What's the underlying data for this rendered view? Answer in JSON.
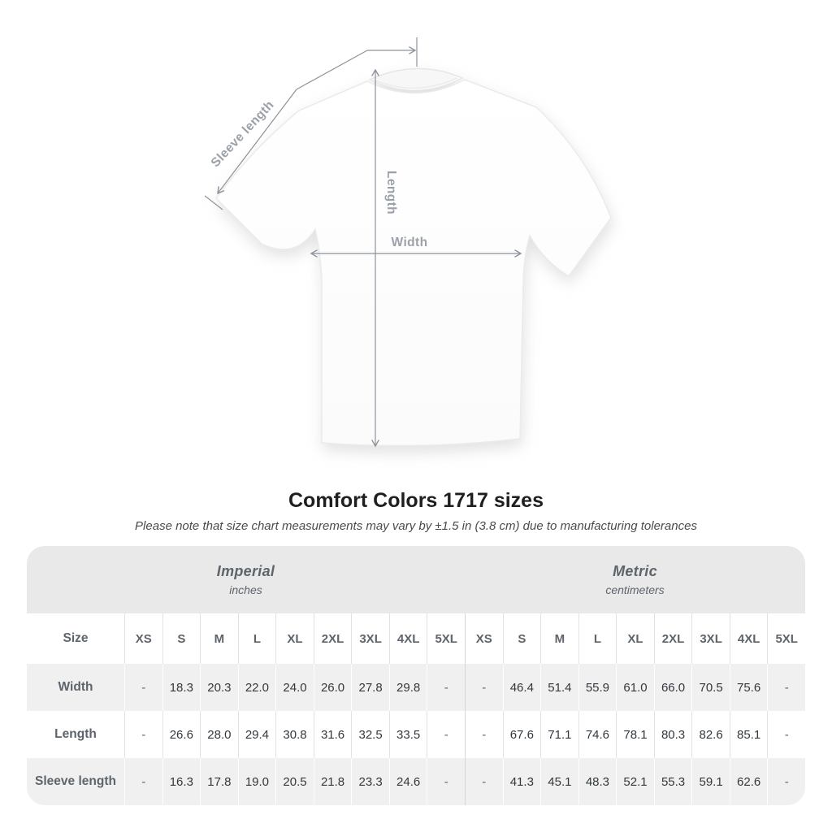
{
  "diagram": {
    "sleeve_length_label": "Sleeve length",
    "length_label": "Length",
    "width_label": "Width"
  },
  "header": {
    "title": "Comfort Colors 1717 sizes",
    "subtitle": "Please note that size chart measurements may vary by ±1.5 in (3.8 cm) due to manufacturing tolerances"
  },
  "table": {
    "size_label": "Size",
    "sections": [
      {
        "name": "Imperial",
        "unit": "inches"
      },
      {
        "name": "Metric",
        "unit": "centimeters"
      }
    ],
    "sizes": [
      "XS",
      "S",
      "M",
      "L",
      "XL",
      "2XL",
      "3XL",
      "4XL",
      "5XL"
    ],
    "rows": [
      {
        "label": "Width",
        "imperial": [
          "-",
          "18.3",
          "20.3",
          "22.0",
          "24.0",
          "26.0",
          "27.8",
          "29.8",
          "-"
        ],
        "metric": [
          "-",
          "46.4",
          "51.4",
          "55.9",
          "61.0",
          "66.0",
          "70.5",
          "75.6",
          "-"
        ]
      },
      {
        "label": "Length",
        "imperial": [
          "-",
          "26.6",
          "28.0",
          "29.4",
          "30.8",
          "31.6",
          "32.5",
          "33.5",
          "-"
        ],
        "metric": [
          "-",
          "67.6",
          "71.1",
          "74.6",
          "78.1",
          "80.3",
          "82.6",
          "85.1",
          "-"
        ]
      },
      {
        "label": "Sleeve length",
        "imperial": [
          "-",
          "16.3",
          "17.8",
          "19.0",
          "20.5",
          "21.8",
          "23.3",
          "24.6",
          "-"
        ],
        "metric": [
          "-",
          "41.3",
          "45.1",
          "48.3",
          "52.1",
          "55.3",
          "59.1",
          "62.6",
          "-"
        ]
      }
    ]
  },
  "chart_data": {
    "type": "table",
    "title": "Comfort Colors 1717 sizes",
    "note": "Please note that size chart measurements may vary by ±1.5 in (3.8 cm) due to manufacturing tolerances",
    "columns": [
      "Size",
      "XS",
      "S",
      "M",
      "L",
      "XL",
      "2XL",
      "3XL",
      "4XL",
      "5XL"
    ],
    "sections": [
      {
        "name": "Imperial",
        "unit": "inches",
        "rows": [
          [
            "Width",
            "-",
            "18.3",
            "20.3",
            "22.0",
            "24.0",
            "26.0",
            "27.8",
            "29.8",
            "-"
          ],
          [
            "Length",
            "-",
            "26.6",
            "28.0",
            "29.4",
            "30.8",
            "31.6",
            "32.5",
            "33.5",
            "-"
          ],
          [
            "Sleeve length",
            "-",
            "16.3",
            "17.8",
            "19.0",
            "20.5",
            "21.8",
            "23.3",
            "24.6",
            "-"
          ]
        ]
      },
      {
        "name": "Metric",
        "unit": "centimeters",
        "rows": [
          [
            "Width",
            "-",
            "46.4",
            "51.4",
            "55.9",
            "61.0",
            "66.0",
            "70.5",
            "75.6",
            "-"
          ],
          [
            "Length",
            "-",
            "67.6",
            "71.1",
            "74.6",
            "78.1",
            "80.3",
            "82.6",
            "85.1",
            "-"
          ],
          [
            "Sleeve length",
            "-",
            "41.3",
            "45.1",
            "48.3",
            "52.1",
            "55.3",
            "59.1",
            "62.6",
            "-"
          ]
        ]
      }
    ]
  },
  "colors": {
    "band_gray": "#e9e9e9",
    "alt_row_gray": "#f0f0f0",
    "label_gray": "#5d646b",
    "value_text": "#33383d",
    "annotation_gray": "#8d939a",
    "annotation_label": "#9aa1a8"
  }
}
